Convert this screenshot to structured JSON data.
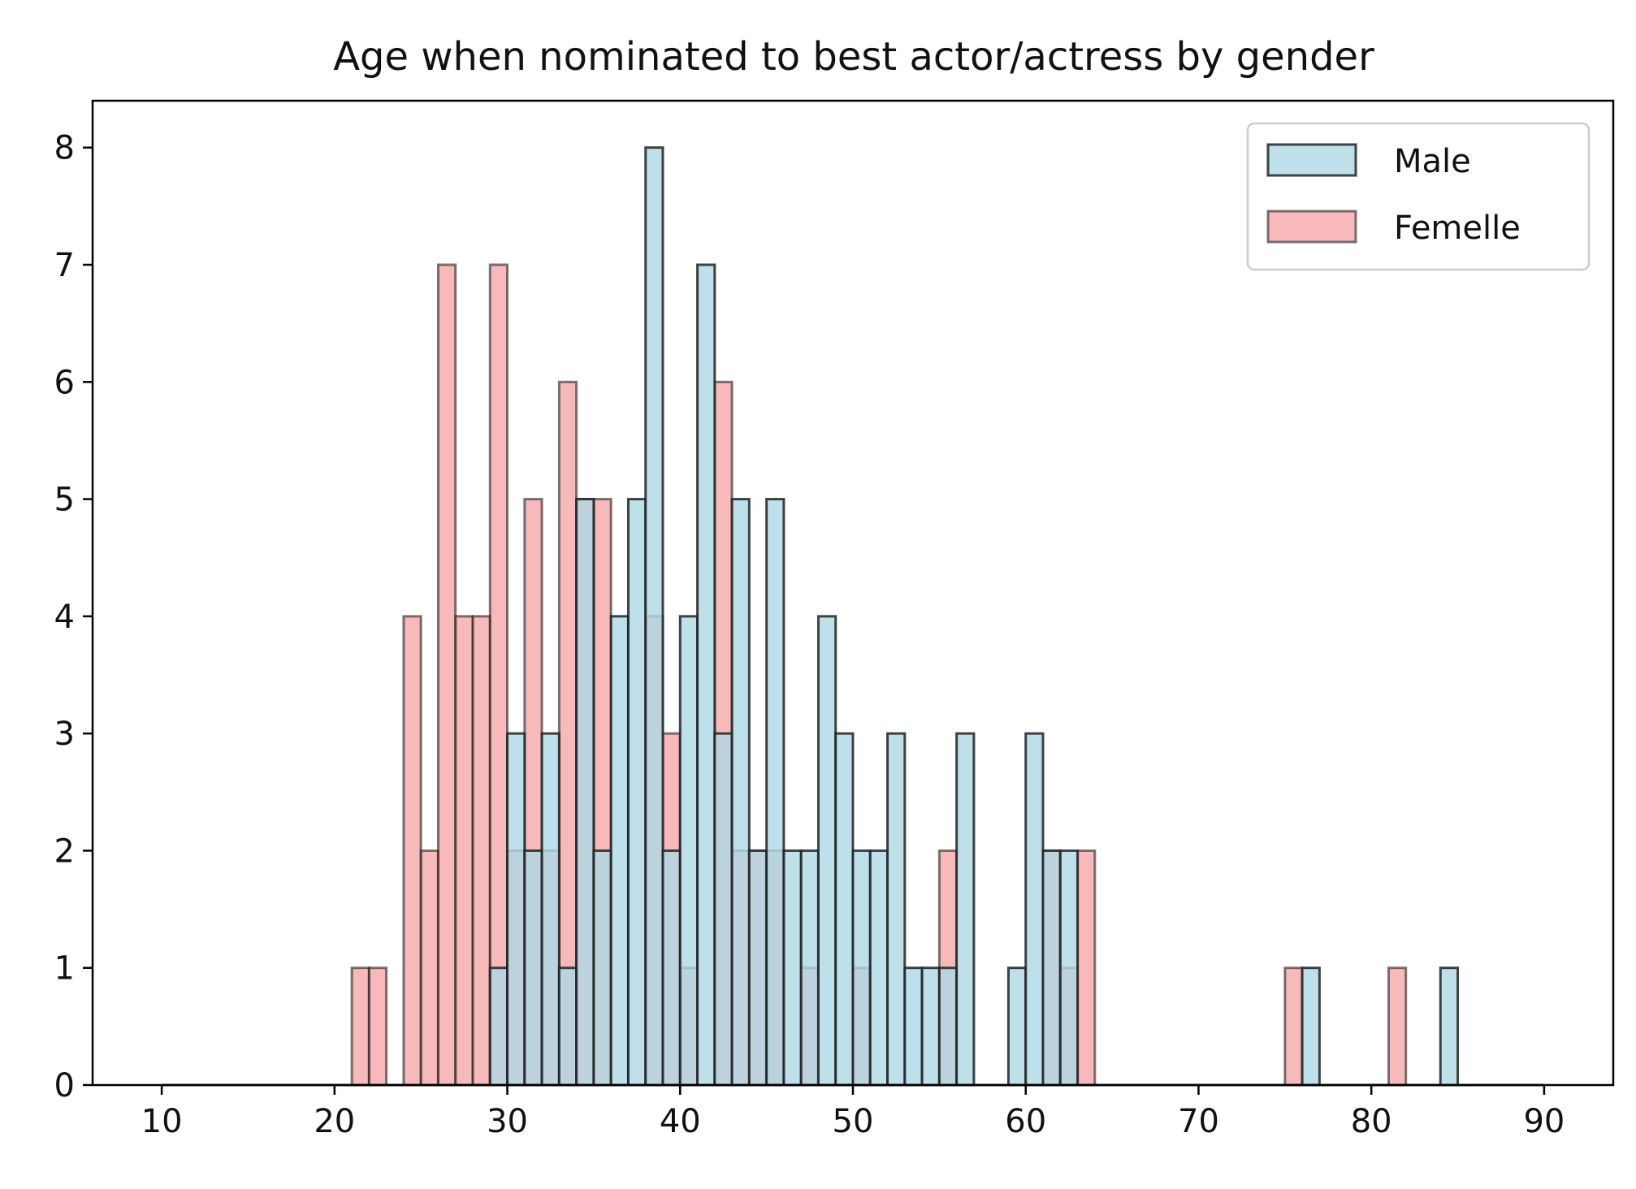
{
  "chart_data": {
    "type": "bar",
    "subtype": "histogram",
    "title": "Age when nominated to best actor/actress by gender",
    "xlabel": "",
    "ylabel": "",
    "xlim": [
      6,
      94
    ],
    "ylim": [
      0,
      8.4
    ],
    "xticks": [
      10,
      20,
      30,
      40,
      50,
      60,
      70,
      80,
      90
    ],
    "yticks": [
      0,
      1,
      2,
      3,
      4,
      5,
      6,
      7,
      8
    ],
    "bins": {
      "start": 10,
      "end": 90,
      "count": 80,
      "width": 1
    },
    "legend_position": "top-right",
    "grid": false,
    "series": [
      {
        "name": "Male",
        "color": "#add8e6",
        "edge": "#222222",
        "bars": [
          {
            "x": 29,
            "value": 1
          },
          {
            "x": 30,
            "value": 3
          },
          {
            "x": 31,
            "value": 2
          },
          {
            "x": 32,
            "value": 3
          },
          {
            "x": 33,
            "value": 1
          },
          {
            "x": 34,
            "value": 5
          },
          {
            "x": 35,
            "value": 2
          },
          {
            "x": 36,
            "value": 4
          },
          {
            "x": 37,
            "value": 5
          },
          {
            "x": 38,
            "value": 8
          },
          {
            "x": 39,
            "value": 2
          },
          {
            "x": 40,
            "value": 4
          },
          {
            "x": 41,
            "value": 7
          },
          {
            "x": 42,
            "value": 3
          },
          {
            "x": 43,
            "value": 5
          },
          {
            "x": 44,
            "value": 2
          },
          {
            "x": 45,
            "value": 5
          },
          {
            "x": 46,
            "value": 2
          },
          {
            "x": 47,
            "value": 2
          },
          {
            "x": 48,
            "value": 4
          },
          {
            "x": 49,
            "value": 3
          },
          {
            "x": 50,
            "value": 2
          },
          {
            "x": 51,
            "value": 2
          },
          {
            "x": 52,
            "value": 3
          },
          {
            "x": 53,
            "value": 1
          },
          {
            "x": 54,
            "value": 1
          },
          {
            "x": 55,
            "value": 1
          },
          {
            "x": 56,
            "value": 3
          },
          {
            "x": 59,
            "value": 1
          },
          {
            "x": 60,
            "value": 3
          },
          {
            "x": 61,
            "value": 2
          },
          {
            "x": 62,
            "value": 2
          },
          {
            "x": 76,
            "value": 1
          },
          {
            "x": 84,
            "value": 1
          }
        ]
      },
      {
        "name": "Femelle",
        "color": "#f08080",
        "edge": "#222222",
        "bars": [
          {
            "x": 21,
            "value": 1
          },
          {
            "x": 22,
            "value": 1
          },
          {
            "x": 24,
            "value": 4
          },
          {
            "x": 25,
            "value": 2
          },
          {
            "x": 26,
            "value": 7
          },
          {
            "x": 27,
            "value": 4
          },
          {
            "x": 28,
            "value": 4
          },
          {
            "x": 29,
            "value": 7
          },
          {
            "x": 30,
            "value": 2
          },
          {
            "x": 31,
            "value": 5
          },
          {
            "x": 32,
            "value": 2
          },
          {
            "x": 33,
            "value": 6
          },
          {
            "x": 34,
            "value": 5
          },
          {
            "x": 35,
            "value": 5
          },
          {
            "x": 38,
            "value": 4
          },
          {
            "x": 39,
            "value": 3
          },
          {
            "x": 40,
            "value": 1
          },
          {
            "x": 42,
            "value": 6
          },
          {
            "x": 43,
            "value": 2
          },
          {
            "x": 44,
            "value": 2
          },
          {
            "x": 45,
            "value": 2
          },
          {
            "x": 47,
            "value": 1
          },
          {
            "x": 50,
            "value": 1
          },
          {
            "x": 55,
            "value": 2
          },
          {
            "x": 61,
            "value": 2
          },
          {
            "x": 62,
            "value": 1
          },
          {
            "x": 63,
            "value": 2
          },
          {
            "x": 75,
            "value": 1
          },
          {
            "x": 81,
            "value": 1
          }
        ]
      }
    ]
  }
}
